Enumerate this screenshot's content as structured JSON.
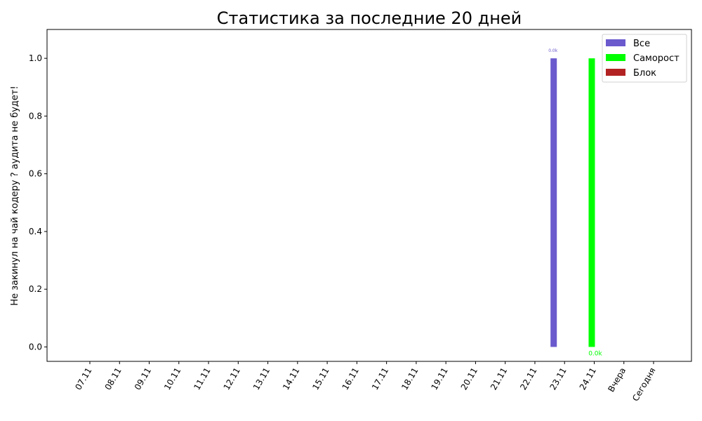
{
  "chart_data": {
    "type": "bar",
    "title": "Статистика за последние 20 дней",
    "xlabel": "",
    "ylabel": "Не закинул на чай кодеру ? аудита не будет!",
    "ylim": [
      -0.05,
      1.1
    ],
    "yticks": [
      "0.0",
      "0.2",
      "0.4",
      "0.6",
      "0.8",
      "1.0"
    ],
    "categories": [
      "07.11",
      "08.11",
      "09.11",
      "10.11",
      "11.11",
      "12.11",
      "13.11",
      "14.11",
      "15.11",
      "16.11",
      "17.11",
      "18.11",
      "19.11",
      "20.11",
      "21.11",
      "22.11",
      "23.11",
      "24.11",
      "Вчера",
      "Сегодня"
    ],
    "grid": false,
    "legend_position": "top-right",
    "series": [
      {
        "name": "Все",
        "color": "#6a5acd",
        "values": [
          0,
          0,
          0,
          0,
          0,
          0,
          0,
          0,
          0,
          0,
          0,
          0,
          0,
          0,
          0,
          0,
          1,
          0,
          0,
          0
        ],
        "labels": [
          "",
          "",
          "",
          "",
          "",
          "",
          "",
          "",
          "",
          "",
          "",
          "",
          "",
          "",
          "",
          "",
          "0.0k",
          "",
          "",
          ""
        ]
      },
      {
        "name": "Саморост",
        "color": "#00ff00",
        "values": [
          0,
          0,
          0,
          0,
          0,
          0,
          0,
          0,
          0,
          0,
          0,
          0,
          0,
          0,
          0,
          0,
          0,
          1,
          0,
          0
        ],
        "labels": [
          "",
          "",
          "",
          "",
          "",
          "",
          "",
          "",
          "",
          "",
          "",
          "",
          "",
          "",
          "",
          "",
          "",
          "0.0k",
          "",
          ""
        ]
      },
      {
        "name": "Блок",
        "color": "#b22222",
        "values": [
          0,
          0,
          0,
          0,
          0,
          0,
          0,
          0,
          0,
          0,
          0,
          0,
          0,
          0,
          0,
          0,
          0,
          0,
          0,
          0
        ],
        "labels": [
          "",
          "",
          "",
          "",
          "",
          "",
          "",
          "",
          "",
          "",
          "",
          "",
          "",
          "",
          "",
          "",
          "",
          "",
          "",
          ""
        ]
      }
    ]
  }
}
